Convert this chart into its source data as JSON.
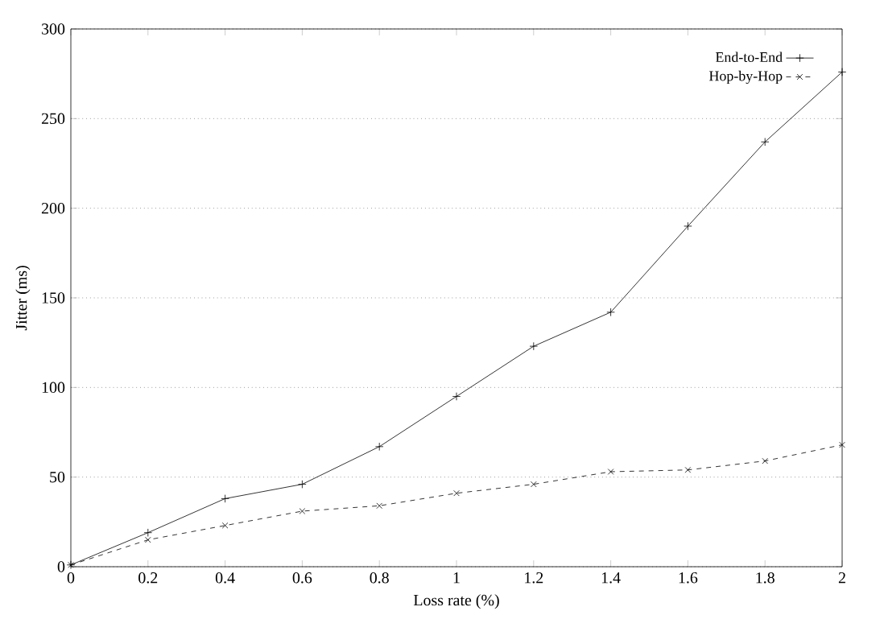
{
  "chart_data": {
    "type": "line",
    "xlabel": "Loss rate (%)",
    "ylabel": "Jitter (ms)",
    "x": [
      0,
      0.2,
      0.4,
      0.6,
      0.8,
      1,
      1.2,
      1.4,
      1.6,
      1.8,
      2
    ],
    "series": [
      {
        "name": "End-to-End",
        "color": "#000000",
        "marker": "plus",
        "line_style": "solid",
        "values": [
          1,
          19,
          38,
          46,
          67,
          95,
          123,
          142,
          190,
          237,
          276
        ]
      },
      {
        "name": "Hop-by-Hop",
        "color": "#000000",
        "marker": "cross",
        "line_style": "dashed",
        "values": [
          1,
          15,
          23,
          31,
          34,
          41,
          46,
          53,
          54,
          59,
          68
        ]
      }
    ],
    "xlim": [
      0,
      2
    ],
    "ylim": [
      0,
      300
    ],
    "xticks": [
      0,
      0.2,
      0.4,
      0.6,
      0.8,
      1,
      1.2,
      1.4,
      1.6,
      1.8,
      2
    ],
    "yticks": [
      0,
      50,
      100,
      150,
      200,
      250,
      300
    ],
    "grid": "y",
    "legend": "top right"
  }
}
